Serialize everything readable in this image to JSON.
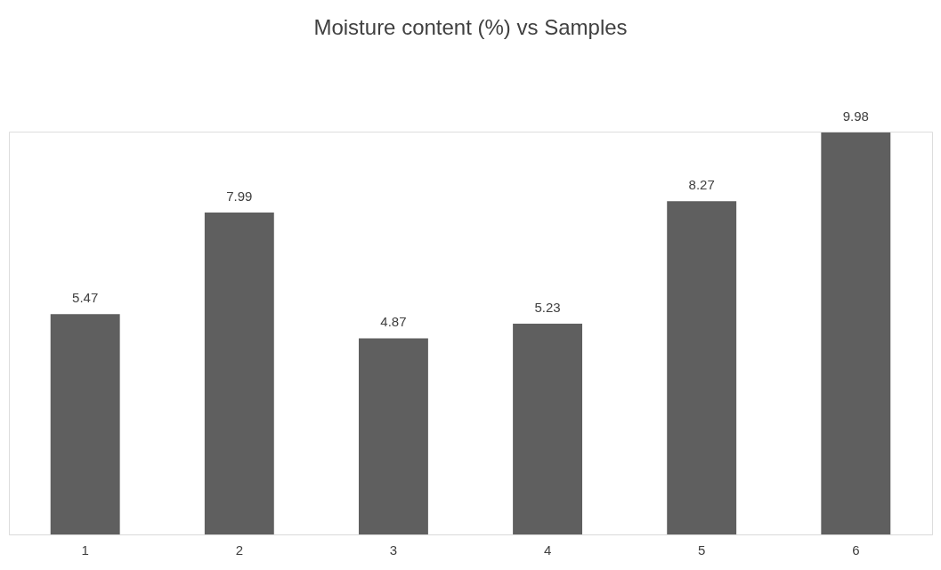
{
  "chart_data": {
    "type": "bar",
    "title": "Moisture content (%) vs Samples",
    "categories": [
      "1",
      "2",
      "3",
      "4",
      "5",
      "6"
    ],
    "values": [
      5.47,
      7.99,
      4.87,
      5.23,
      8.27,
      9.98
    ],
    "color": "#5f5f5f",
    "data_labels": true,
    "grid": false,
    "tick_labels": "x"
  }
}
